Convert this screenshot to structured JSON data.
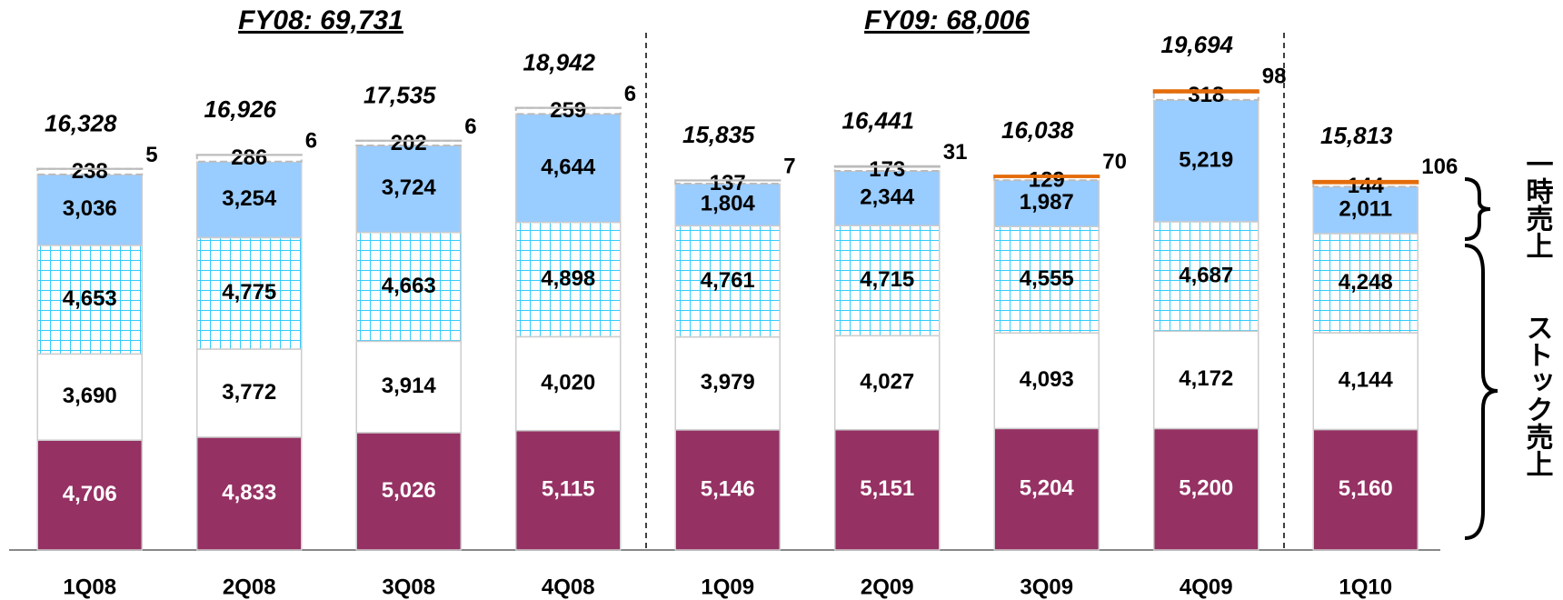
{
  "chart_data": {
    "type": "stacked_bar",
    "categories": [
      "1Q08",
      "2Q08",
      "3Q08",
      "4Q08",
      "1Q09",
      "2Q09",
      "3Q09",
      "4Q09",
      "1Q10"
    ],
    "series": [
      {
        "color": "#953163",
        "values": [
          4706,
          4833,
          5026,
          5115,
          5146,
          5151,
          5204,
          5200,
          5160
        ],
        "value_labels": [
          "4,706",
          "4,833",
          "5,026",
          "5,115",
          "5,146",
          "5,151",
          "5,204",
          "5,200",
          "5,160"
        ]
      },
      {
        "color": "#ffffff",
        "values": [
          3690,
          3772,
          3914,
          4020,
          3979,
          4027,
          4093,
          4172,
          4144
        ],
        "value_labels": [
          "3,690",
          "3,772",
          "3,914",
          "4,020",
          "3,979",
          "4,027",
          "4,093",
          "4,172",
          "4,144"
        ]
      },
      {
        "color": "#33ccff",
        "pattern": "grid",
        "values": [
          4653,
          4775,
          4663,
          4898,
          4761,
          4715,
          4555,
          4687,
          4248
        ],
        "value_labels": [
          "4,653",
          "4,775",
          "4,663",
          "4,898",
          "4,761",
          "4,715",
          "4,555",
          "4,687",
          "4,248"
        ]
      },
      {
        "color": "#99ccff",
        "values": [
          3036,
          3254,
          3724,
          4644,
          1804,
          2344,
          1987,
          5219,
          2011
        ],
        "value_labels": [
          "3,036",
          "3,254",
          "3,724",
          "4,644",
          "1,804",
          "2,344",
          "1,987",
          "5,219",
          "2,011"
        ]
      },
      {
        "color": "#ffffff",
        "pattern": "dashed",
        "values": [
          238,
          286,
          202,
          259,
          137,
          173,
          129,
          318,
          144
        ]
      },
      {
        "colors": [
          "#bbbbbb",
          "#bbbbbb",
          "#bbbbbb",
          "#bbbbbb",
          "#bbbbbb",
          "#bbbbbb",
          "#e46c0a",
          "#e46c0a",
          "#e46c0a"
        ],
        "values": [
          5,
          6,
          6,
          6,
          7,
          31,
          70,
          98,
          106
        ]
      }
    ],
    "totals": {
      "values": [
        16328,
        16926,
        17535,
        18942,
        15835,
        16441,
        16038,
        19694,
        15813
      ],
      "value_labels": [
        "16,328",
        "16,926",
        "17,535",
        "18,942",
        "15,835",
        "16,441",
        "16,038",
        "19,694",
        "15,813"
      ]
    },
    "annotations": [
      "FY08: 69,731",
      "FY09: 68,006",
      "一時売上",
      "ストック売上"
    ],
    "ylim": [
      0,
      22000
    ]
  }
}
